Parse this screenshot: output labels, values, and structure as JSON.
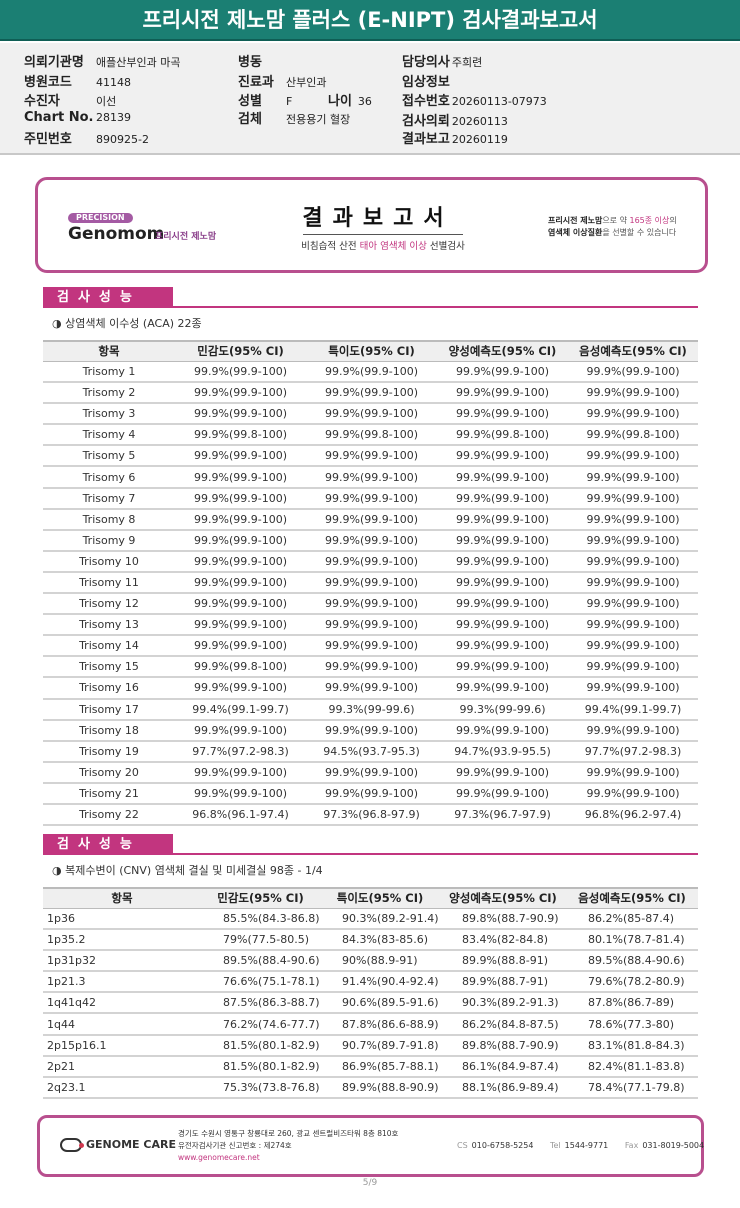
{
  "title": "프리시전 제노맘 플러스 (E-NIPT) 검사결과보고서",
  "info": {
    "hospital_label": "의뢰기관명",
    "hospital": "애플산부인과 마곡",
    "code_label": "병원코드",
    "code": "41148",
    "patient_label": "수진자",
    "patient": "이선",
    "chart_label": "Chart No.",
    "chart": "28139",
    "id_label": "주민번호",
    "id": "890925-2",
    "ward_label": "병동",
    "ward": "",
    "dept_label": "진료과",
    "dept": "산부인과",
    "sex_label": "성별",
    "sex": "F",
    "age_label": "나이",
    "age": "36",
    "specimen_label": "검체",
    "specimen": "전용용기 혈장",
    "doctor_label": "담당의사",
    "doctor": "주희련",
    "clinical_label": "임상정보",
    "clinical": "",
    "receipt_label": "접수번호",
    "receipt": "20260113-07973",
    "request_label": "검사의뢰",
    "request": "20260113",
    "report_label": "결과보고",
    "report": "20260119"
  },
  "banner": {
    "badge": "PRECISION",
    "logo": "Genomom",
    "logo_sub": "프리시전 제노맘",
    "title": "결과보고서",
    "subtitle_pre": "비침습적 산전 ",
    "subtitle_hl": "태아 염색체 이상",
    "subtitle_post": " 선별검사",
    "right_1a": "프리시전 제노맘",
    "right_1b": "으로 약 ",
    "right_1c": "165종 이상",
    "right_1d": "의",
    "right_2a": "염색체 이상질환",
    "right_2b": "을 선별할 수 있습니다"
  },
  "section1": {
    "header": "검사성능",
    "subtitle": "◑ 상염색체 이수성 (ACA) 22종"
  },
  "section2": {
    "header": "검사성능",
    "subtitle": "◑ 복제수변이 (CNV) 염색체 결실 및 미세결실 98종 - 1/4"
  },
  "columns": [
    "항목",
    "민감도(95% CI)",
    "특이도(95% CI)",
    "양성예측도(95% CI)",
    "음성예측도(95% CI)"
  ],
  "aca_rows": [
    [
      "Trisomy 1",
      "99.9%(99.9-100)",
      "99.9%(99.9-100)",
      "99.9%(99.9-100)",
      "99.9%(99.9-100)"
    ],
    [
      "Trisomy 2",
      "99.9%(99.9-100)",
      "99.9%(99.9-100)",
      "99.9%(99.9-100)",
      "99.9%(99.9-100)"
    ],
    [
      "Trisomy 3",
      "99.9%(99.9-100)",
      "99.9%(99.9-100)",
      "99.9%(99.9-100)",
      "99.9%(99.9-100)"
    ],
    [
      "Trisomy 4",
      "99.9%(99.8-100)",
      "99.9%(99.8-100)",
      "99.9%(99.8-100)",
      "99.9%(99.8-100)"
    ],
    [
      "Trisomy 5",
      "99.9%(99.9-100)",
      "99.9%(99.9-100)",
      "99.9%(99.9-100)",
      "99.9%(99.9-100)"
    ],
    [
      "Trisomy 6",
      "99.9%(99.9-100)",
      "99.9%(99.9-100)",
      "99.9%(99.9-100)",
      "99.9%(99.9-100)"
    ],
    [
      "Trisomy 7",
      "99.9%(99.9-100)",
      "99.9%(99.9-100)",
      "99.9%(99.9-100)",
      "99.9%(99.9-100)"
    ],
    [
      "Trisomy 8",
      "99.9%(99.9-100)",
      "99.9%(99.9-100)",
      "99.9%(99.9-100)",
      "99.9%(99.9-100)"
    ],
    [
      "Trisomy 9",
      "99.9%(99.9-100)",
      "99.9%(99.9-100)",
      "99.9%(99.9-100)",
      "99.9%(99.9-100)"
    ],
    [
      "Trisomy 10",
      "99.9%(99.9-100)",
      "99.9%(99.9-100)",
      "99.9%(99.9-100)",
      "99.9%(99.9-100)"
    ],
    [
      "Trisomy 11",
      "99.9%(99.9-100)",
      "99.9%(99.9-100)",
      "99.9%(99.9-100)",
      "99.9%(99.9-100)"
    ],
    [
      "Trisomy 12",
      "99.9%(99.9-100)",
      "99.9%(99.9-100)",
      "99.9%(99.9-100)",
      "99.9%(99.9-100)"
    ],
    [
      "Trisomy 13",
      "99.9%(99.9-100)",
      "99.9%(99.9-100)",
      "99.9%(99.9-100)",
      "99.9%(99.9-100)"
    ],
    [
      "Trisomy 14",
      "99.9%(99.9-100)",
      "99.9%(99.9-100)",
      "99.9%(99.9-100)",
      "99.9%(99.9-100)"
    ],
    [
      "Trisomy 15",
      "99.9%(99.8-100)",
      "99.9%(99.9-100)",
      "99.9%(99.9-100)",
      "99.9%(99.9-100)"
    ],
    [
      "Trisomy 16",
      "99.9%(99.9-100)",
      "99.9%(99.9-100)",
      "99.9%(99.9-100)",
      "99.9%(99.9-100)"
    ],
    [
      "Trisomy 17",
      "99.4%(99.1-99.7)",
      "99.3%(99-99.6)",
      "99.3%(99-99.6)",
      "99.4%(99.1-99.7)"
    ],
    [
      "Trisomy 18",
      "99.9%(99.9-100)",
      "99.9%(99.9-100)",
      "99.9%(99.9-100)",
      "99.9%(99.9-100)"
    ],
    [
      "Trisomy 19",
      "97.7%(97.2-98.3)",
      "94.5%(93.7-95.3)",
      "94.7%(93.9-95.5)",
      "97.7%(97.2-98.3)"
    ],
    [
      "Trisomy 20",
      "99.9%(99.9-100)",
      "99.9%(99.9-100)",
      "99.9%(99.9-100)",
      "99.9%(99.9-100)"
    ],
    [
      "Trisomy 21",
      "99.9%(99.9-100)",
      "99.9%(99.9-100)",
      "99.9%(99.9-100)",
      "99.9%(99.9-100)"
    ],
    [
      "Trisomy 22",
      "96.8%(96.1-97.4)",
      "97.3%(96.8-97.9)",
      "97.3%(96.7-97.9)",
      "96.8%(96.2-97.4)"
    ]
  ],
  "cnv_rows": [
    [
      "1p36",
      "85.5%(84.3-86.8)",
      "90.3%(89.2-91.4)",
      "89.8%(88.7-90.9)",
      "86.2%(85-87.4)"
    ],
    [
      "1p35.2",
      "79%(77.5-80.5)",
      "84.3%(83-85.6)",
      "83.4%(82-84.8)",
      "80.1%(78.7-81.4)"
    ],
    [
      "1p31p32",
      "89.5%(88.4-90.6)",
      "90%(88.9-91)",
      "89.9%(88.8-91)",
      "89.5%(88.4-90.6)"
    ],
    [
      "1p21.3",
      "76.6%(75.1-78.1)",
      "91.4%(90.4-92.4)",
      "89.9%(88.7-91)",
      "79.6%(78.2-80.9)"
    ],
    [
      "1q41q42",
      "87.5%(86.3-88.7)",
      "90.6%(89.5-91.6)",
      "90.3%(89.2-91.3)",
      "87.8%(86.7-89)"
    ],
    [
      "1q44",
      "76.2%(74.6-77.7)",
      "87.8%(86.6-88.9)",
      "86.2%(84.8-87.5)",
      "78.6%(77.3-80)"
    ],
    [
      "2p15p16.1",
      "81.5%(80.1-82.9)",
      "90.7%(89.7-91.8)",
      "89.8%(88.7-90.9)",
      "83.1%(81.8-84.3)"
    ],
    [
      "2p21",
      "81.5%(80.1-82.9)",
      "86.9%(85.7-88.1)",
      "86.1%(84.9-87.4)",
      "82.4%(81.1-83.8)"
    ],
    [
      "2q23.1",
      "75.3%(73.8-76.8)",
      "89.9%(88.8-90.9)",
      "88.1%(86.9-89.4)",
      "78.4%(77.1-79.8)"
    ]
  ],
  "footer": {
    "company": "GENOME CARE",
    "address": "경기도 수원시 영통구 창룡대로 260, 광교 센트럴비즈타워 8층 810호",
    "license": "유전자검사기관 신고번호 : 제274호",
    "url": "www.genomecare.net",
    "cs_label": "CS",
    "cs": "010-6758-5254",
    "tel_label": "Tel",
    "tel": "1544-9771",
    "fax_label": "Fax",
    "fax": "031-8019-5004"
  },
  "page": "5/9",
  "colors": {
    "title_bar": "#1b7f73",
    "accent": "#c2357f",
    "border": "#b84f8e"
  }
}
